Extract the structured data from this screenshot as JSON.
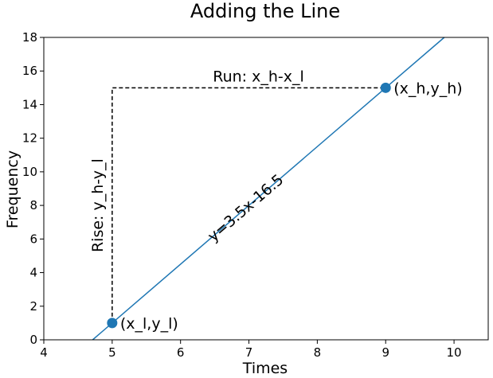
{
  "chart_data": {
    "type": "line",
    "title": "Adding the Line",
    "xlabel": "Times",
    "ylabel": "Frequency",
    "xlim": [
      4,
      10.5
    ],
    "ylim": [
      0,
      18
    ],
    "xticks": [
      4,
      5,
      6,
      7,
      8,
      9,
      10
    ],
    "yticks": [
      0,
      2,
      4,
      6,
      8,
      10,
      12,
      14,
      16,
      18
    ],
    "grid": false,
    "line": {
      "slope": 3.5,
      "intercept": -16.5,
      "color": "#1f77b4",
      "label": "y=3.5x-16.5"
    },
    "points": [
      {
        "x": 5,
        "y": 1,
        "label": "(x_l,y_l)"
      },
      {
        "x": 9,
        "y": 15,
        "label": "(x_h,y_h)"
      }
    ],
    "annotations": {
      "run": "Run: x_h-x_l",
      "rise": "Rise: y_h-y_l"
    },
    "point_color": "#1f77b4"
  }
}
